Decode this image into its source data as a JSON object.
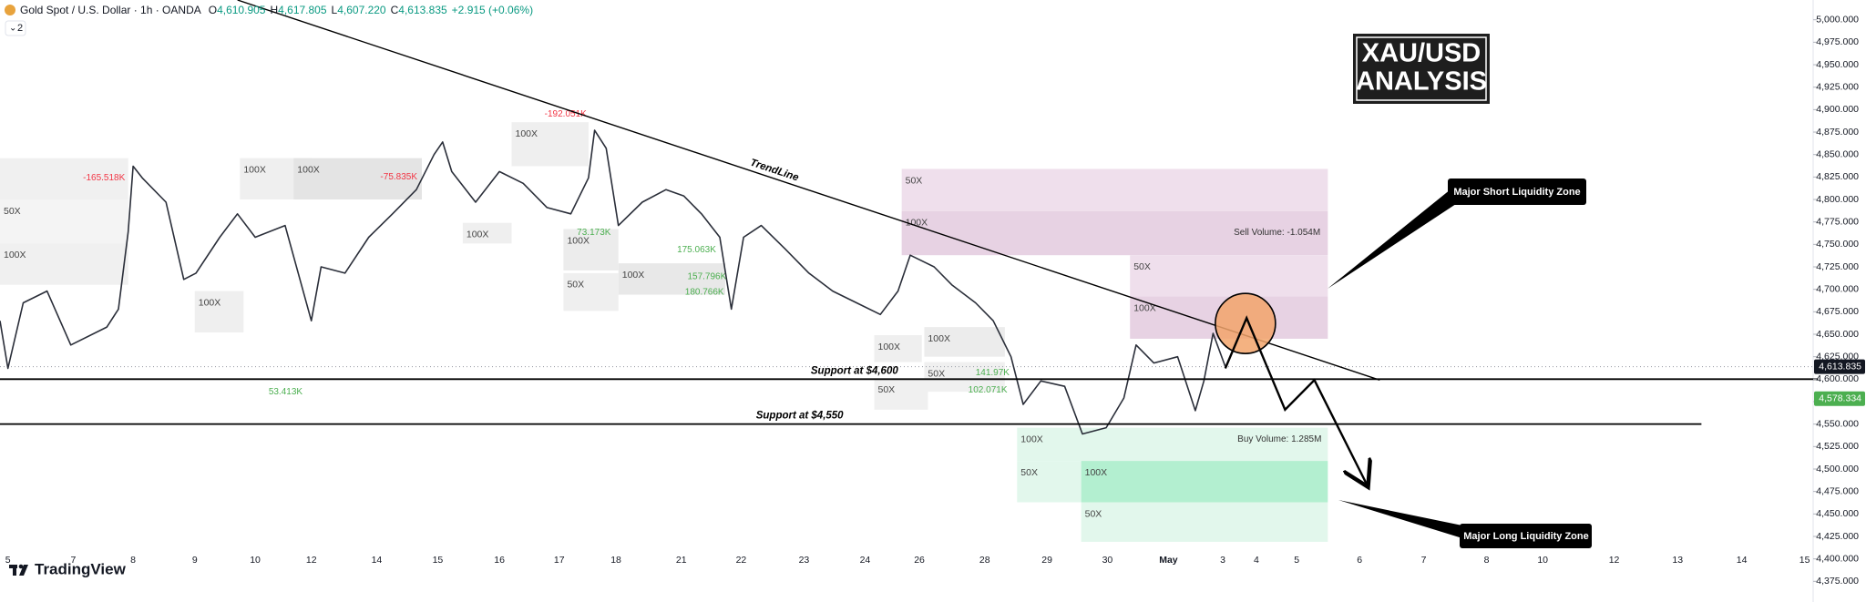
{
  "header": {
    "symbol": "Gold Spot / U.S. Dollar · 1h · OANDA",
    "ohlc": [
      {
        "key": "O",
        "value": "4,610.905"
      },
      {
        "key": "H",
        "value": "4,617.805"
      },
      {
        "key": "L",
        "value": "4,607.220"
      },
      {
        "key": "C",
        "value": "4,613.835"
      }
    ],
    "change": "+2.915 (+0.06%)",
    "indicator_count": "2"
  },
  "badge": {
    "line1": "XAU/USD",
    "line2": "ANALYSIS"
  },
  "logo": "TradingView",
  "callouts": {
    "short": "Major Short Liquidity Zone",
    "long": "Major Long Liquidity Zone"
  },
  "chart_data": {
    "type": "line",
    "color": "#2a2e39",
    "x": [
      -0.13,
      0,
      0.25,
      0.64,
      1.03,
      1.62,
      1.81,
      1.97,
      2.05,
      2.2,
      2.59,
      2.88,
      3.08,
      3.47,
      3.76,
      4.05,
      4.54,
      4.97,
      5.13,
      5.52,
      5.91,
      6.3,
      6.69,
      6.98,
      7.12,
      7.27,
      7.66,
      8.05,
      8.44,
      8.83,
      9.22,
      9.51,
      9.61,
      9.8,
      10,
      10.39,
      10.78,
      11.07,
      11.36,
      11.66,
      11.85,
      12.05,
      12.34,
      12.73,
      13.12,
      13.51,
      13.9,
      14.29,
      14.58,
      14.78,
      15.17,
      15.46,
      15.85,
      16.14,
      16.43,
      16.63,
      16.92,
      17.31,
      17.6,
      17.99,
      18.28,
      18.48,
      18.77,
      19.16,
      19.45,
      19.59,
      19.74,
      19.94
    ],
    "values": [
      4665,
      4612,
      4685,
      4698,
      4638,
      4658,
      4678,
      4764,
      4837,
      4824,
      4797,
      4711,
      4718,
      4758,
      4784,
      4758,
      4771,
      4665,
      4725,
      4718,
      4758,
      4784,
      4811,
      4850,
      4864,
      4831,
      4797,
      4831,
      4818,
      4791,
      4784,
      4824,
      4877,
      4857,
      4771,
      4797,
      4811,
      4804,
      4784,
      4758,
      4678,
      4758,
      4771,
      4745,
      4718,
      4698,
      4685,
      4672,
      4698,
      4738,
      4725,
      4705,
      4685,
      4665,
      4625,
      4572,
      4598,
      4592,
      4539,
      4546,
      4579,
      4638,
      4618,
      4625,
      4565,
      4598,
      4651,
      4614
    ],
    "xlim": [
      -0.13,
      29.57
    ],
    "ylim": [
      4352,
      5022
    ],
    "xticks": [
      {
        "value": 0,
        "label": "5"
      },
      {
        "value": 1.07,
        "label": "7"
      },
      {
        "value": 2.05,
        "label": "8"
      },
      {
        "value": 3.06,
        "label": "9"
      },
      {
        "value": 4.05,
        "label": "10"
      },
      {
        "value": 4.97,
        "label": "12"
      },
      {
        "value": 6.04,
        "label": "14"
      },
      {
        "value": 7.04,
        "label": "15"
      },
      {
        "value": 8.05,
        "label": "16"
      },
      {
        "value": 9.03,
        "label": "17"
      },
      {
        "value": 9.96,
        "label": "18"
      },
      {
        "value": 11.03,
        "label": "21"
      },
      {
        "value": 12.01,
        "label": "22"
      },
      {
        "value": 13.04,
        "label": "23"
      },
      {
        "value": 14.04,
        "label": "24"
      },
      {
        "value": 14.93,
        "label": "26"
      },
      {
        "value": 16,
        "label": "28"
      },
      {
        "value": 17.02,
        "label": "29"
      },
      {
        "value": 18.01,
        "label": "30"
      },
      {
        "value": 19.01,
        "label": "May"
      },
      {
        "value": 19.9,
        "label": "3"
      },
      {
        "value": 20.45,
        "label": "4"
      },
      {
        "value": 21.11,
        "label": "5"
      },
      {
        "value": 22.14,
        "label": "6"
      },
      {
        "value": 23.19,
        "label": "7"
      },
      {
        "value": 24.22,
        "label": "8"
      },
      {
        "value": 25.14,
        "label": "10"
      },
      {
        "value": 26.31,
        "label": "12"
      },
      {
        "value": 27.35,
        "label": "13"
      },
      {
        "value": 28.4,
        "label": "14"
      },
      {
        "value": 29.43,
        "label": "15"
      }
    ],
    "yticks": [
      {
        "value": 4375,
        "label": "4,375.000"
      },
      {
        "value": 4400,
        "label": "4,400.000"
      },
      {
        "value": 4425,
        "label": "4,425.000"
      },
      {
        "value": 4450,
        "label": "4,450.000"
      },
      {
        "value": 4475,
        "label": "4,475.000"
      },
      {
        "value": 4500,
        "label": "4,500.000"
      },
      {
        "value": 4525,
        "label": "4,525.000"
      },
      {
        "value": 4550,
        "label": "4,550.000"
      },
      {
        "value": 4575,
        "label": "4,575.000"
      },
      {
        "value": 4600,
        "label": "4,600.000"
      },
      {
        "value": 4625,
        "label": "4,625.000"
      },
      {
        "value": 4650,
        "label": "4,650.000"
      },
      {
        "value": 4675,
        "label": "4,675.000"
      },
      {
        "value": 4700,
        "label": "4,700.000"
      },
      {
        "value": 4725,
        "label": "4,725.000"
      },
      {
        "value": 4750,
        "label": "4,750.000"
      },
      {
        "value": 4775,
        "label": "4,775.000"
      },
      {
        "value": 4800,
        "label": "4,800.000"
      },
      {
        "value": 4825,
        "label": "4,825.000"
      },
      {
        "value": 4850,
        "label": "4,850.000"
      },
      {
        "value": 4875,
        "label": "4,875.000"
      },
      {
        "value": 4900,
        "label": "4,900.000"
      },
      {
        "value": 4925,
        "label": "4,925.000"
      },
      {
        "value": 4950,
        "label": "4,950.000"
      },
      {
        "value": 4975,
        "label": "4,975.000"
      },
      {
        "value": 5000,
        "label": "5,000.000"
      }
    ],
    "boxes": [
      {
        "x": [
          -0.13,
          1.97
        ],
        "y": [
          4846,
          4800
        ],
        "color": "#f0f0f0"
      },
      {
        "x": [
          -0.13,
          1.97
        ],
        "y": [
          4800,
          4751
        ],
        "color": "#f4f4f4",
        "label": "50X"
      },
      {
        "x": [
          -0.13,
          1.97
        ],
        "y": [
          4751,
          4705
        ],
        "color": "#f0f0f0",
        "label": "100X"
      },
      {
        "x": [
          3.06,
          3.86
        ],
        "y": [
          4698,
          4652
        ],
        "color": "#efefef",
        "label": "100X"
      },
      {
        "x": [
          3.8,
          4.97
        ],
        "y": [
          4846,
          4800
        ],
        "color": "#efefef",
        "label": "100X"
      },
      {
        "x": [
          4.68,
          6.78
        ],
        "y": [
          4846,
          4800
        ],
        "color": "#e4e4e4",
        "label": "100X"
      },
      {
        "x": [
          7.45,
          8.25
        ],
        "y": [
          4774,
          4751
        ],
        "color": "#efefef",
        "label": "100X"
      },
      {
        "x": [
          8.25,
          9.51
        ],
        "y": [
          4886,
          4837
        ],
        "color": "#efefef",
        "label": "100X"
      },
      {
        "x": [
          9.1,
          10
        ],
        "y": [
          4767,
          4721
        ],
        "color": "#ececec",
        "label": "100X"
      },
      {
        "x": [
          9.1,
          10
        ],
        "y": [
          4718,
          4676
        ],
        "color": "#efefef",
        "label": "50X"
      },
      {
        "x": [
          10,
          11.75
        ],
        "y": [
          4729,
          4694
        ],
        "color": "#e8e8e8",
        "label": "100X"
      },
      {
        "x": [
          14.19,
          14.97
        ],
        "y": [
          4649,
          4619
        ],
        "color": "#efefef",
        "label": "100X"
      },
      {
        "x": [
          14.19,
          15.07
        ],
        "y": [
          4601,
          4566
        ],
        "color": "#f0f0f0",
        "label": "50X"
      },
      {
        "x": [
          15.01,
          16.33
        ],
        "y": [
          4658,
          4625
        ],
        "color": "#ececec",
        "label": "100X"
      },
      {
        "x": [
          15.01,
          16.33
        ],
        "y": [
          4619,
          4586
        ],
        "color": "#f0f0f0",
        "label": "50X"
      },
      {
        "x": [
          14.64,
          21.62
        ],
        "y": [
          4834,
          4787
        ],
        "color": "#efdfec",
        "label": "50X"
      },
      {
        "x": [
          14.64,
          21.62
        ],
        "y": [
          4787,
          4738
        ],
        "color": "#e7d2e3",
        "label": "100X"
      },
      {
        "x": [
          18.38,
          21.62
        ],
        "y": [
          4738,
          4692
        ],
        "color": "#efdfec",
        "label": "50X"
      },
      {
        "x": [
          18.38,
          21.62
        ],
        "y": [
          4692,
          4645
        ],
        "color": "#e7d2e3",
        "label": "100X"
      },
      {
        "x": [
          16.53,
          21.62
        ],
        "y": [
          4546,
          4509
        ],
        "color": "#e2f7ec",
        "label": "100X"
      },
      {
        "x": [
          16.53,
          17.58
        ],
        "y": [
          4509,
          4463
        ],
        "color": "#e2f7ec",
        "label": "50X"
      },
      {
        "x": [
          17.58,
          21.62
        ],
        "y": [
          4509,
          4463
        ],
        "color": "#b3efd0",
        "label": "100X"
      },
      {
        "x": [
          17.58,
          21.62
        ],
        "y": [
          4463,
          4419
        ],
        "color": "#e2f7ec",
        "label": "50X"
      }
    ],
    "annotations": [
      {
        "text": "-165.518K",
        "x": 1.23,
        "y": 4824,
        "color": "#f23645"
      },
      {
        "text": "-75.835K",
        "x": 6.1,
        "y": 4825,
        "color": "#f23645"
      },
      {
        "text": "-192.051K",
        "x": 8.79,
        "y": 4895,
        "color": "#f23645"
      },
      {
        "text": "73.173K",
        "x": 9.32,
        "y": 4763,
        "color": "#4caf50"
      },
      {
        "text": "175.063K",
        "x": 10.96,
        "y": 4744,
        "color": "#4caf50"
      },
      {
        "text": "157.796K",
        "x": 11.13,
        "y": 4714,
        "color": "#4caf50"
      },
      {
        "text": "180.766K",
        "x": 11.09,
        "y": 4697,
        "color": "#4caf50"
      },
      {
        "text": "53.413K",
        "x": 4.27,
        "y": 4586,
        "color": "#4caf50"
      },
      {
        "text": "141.97K",
        "x": 15.85,
        "y": 4607,
        "color": "#4caf50"
      },
      {
        "text": "102.071K",
        "x": 15.73,
        "y": 4588,
        "color": "#4caf50"
      },
      {
        "text": "Sell Volume: -1.054M",
        "x": 20.08,
        "y": 4763,
        "color": "#333333"
      },
      {
        "text": "Buy Volume: 1.285M",
        "x": 20.14,
        "y": 4533,
        "color": "#333333"
      }
    ],
    "levels": [
      {
        "value": 4600,
        "label": "Support at $4,600",
        "x": [
          -0.13,
          29.65
        ]
      },
      {
        "value": 4550,
        "label": "Support at $4,550",
        "x": [
          -0.13,
          27.74
        ]
      }
    ],
    "trendline": {
      "label": "TrendLine",
      "x": [
        3.76,
        22.47
      ],
      "y": [
        5022,
        4599
      ]
    },
    "projection": {
      "x": [
        19.94,
        20.29,
        20.92,
        21.4,
        22.28
      ],
      "y": [
        4612,
        4668,
        4566,
        4599,
        4480
      ]
    },
    "circle": {
      "x": 20.27,
      "y": 4662,
      "color": "#f2a46b"
    },
    "price_tags": [
      {
        "value": 4613.835,
        "label": "4,613.835",
        "color": "#131722"
      },
      {
        "value": 4578.334,
        "label": "4,578.334",
        "color": "#4caf50"
      }
    ]
  }
}
